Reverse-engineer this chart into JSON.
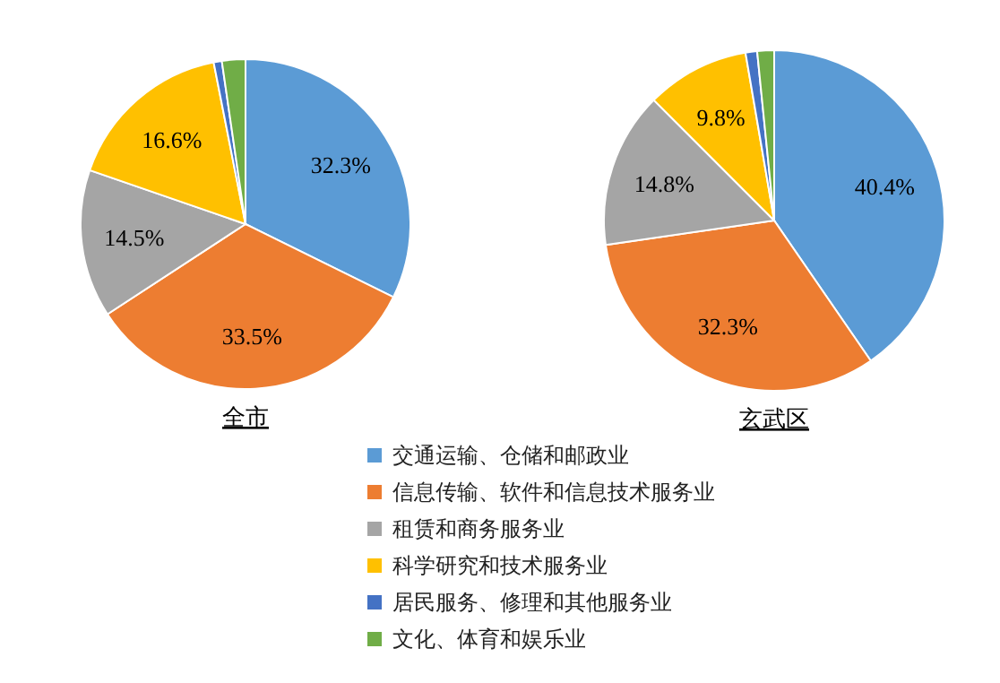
{
  "chart_data": [
    {
      "type": "pie",
      "title": "全市",
      "categories": [
        "交通运输、仓储和邮政业",
        "信息传输、软件和信息技术服务业",
        "租赁和商务服务业",
        "科学研究和技术服务业",
        "居民服务、修理和其他服务业",
        "文化、体育和娱乐业"
      ],
      "values": [
        32.3,
        33.5,
        14.5,
        16.6,
        0.8,
        2.3
      ],
      "value_labels": [
        "32.3%",
        "33.5%",
        "14.5%",
        "16.6%",
        null,
        null
      ],
      "colors": [
        "#5b9bd5",
        "#ed7d31",
        "#a5a5a5",
        "#ffc000",
        "#4472c4",
        "#70ad47"
      ],
      "legend": "bottom"
    },
    {
      "type": "pie",
      "title": "玄武区",
      "values": [
        40.4,
        32.3,
        14.8,
        9.8,
        1.1,
        1.6
      ],
      "value_labels": [
        "40.4%",
        "32.3%",
        "14.8%",
        "9.8%",
        null,
        null
      ],
      "colors": [
        "#5b9bd5",
        "#ed7d31",
        "#a5a5a5",
        "#ffc000",
        "#4472c4",
        "#70ad47"
      ]
    }
  ]
}
